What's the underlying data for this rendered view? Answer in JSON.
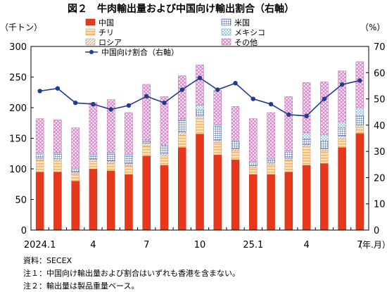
{
  "chart_data": {
    "type": "bar",
    "title": "図２　牛肉輸出量および中国向け輸出割合（右軸）",
    "y_left_unit": "（千トン）",
    "y_right_unit": "（%）",
    "x_unit": "（年.月）",
    "ylim_left": [
      0,
      300
    ],
    "ylim_right": [
      0,
      70
    ],
    "yticks_left": [
      "0",
      "50",
      "100",
      "150",
      "200",
      "250",
      "300"
    ],
    "yticks_right": [
      "0",
      "10",
      "20",
      "30",
      "40",
      "50",
      "60",
      "70"
    ],
    "x_tick_labels": [
      "2024.1",
      "4",
      "7",
      "10",
      "25.1",
      "4",
      "7"
    ],
    "x_tick_positions": [
      0,
      3,
      6,
      9,
      12,
      15,
      18
    ],
    "grid": false,
    "legend_position": "top-left",
    "categories": [
      "2024.1",
      "2024.2",
      "2024.3",
      "2024.4",
      "2024.5",
      "2024.6",
      "2024.7",
      "2024.8",
      "2024.9",
      "2024.10",
      "2024.11",
      "2024.12",
      "2025.1",
      "2025.2",
      "2025.3",
      "2025.4",
      "2025.5",
      "2025.6",
      "2025.7"
    ],
    "series": [
      {
        "name": "中国",
        "color": "#e8381b",
        "values": [
          95,
          95,
          80,
          100,
          97,
          91,
          121,
          106,
          135,
          157,
          123,
          115,
          91,
          91,
          95,
          106,
          109,
          135,
          158
        ]
      },
      {
        "name": "チリ",
        "color": "#f5c98e",
        "values": [
          19,
          18,
          12,
          12,
          12,
          14,
          16,
          15,
          20,
          25,
          20,
          14,
          11,
          15,
          19,
          30,
          20,
          14,
          10
        ]
      },
      {
        "name": "ロシア",
        "color": "#f3dcc8",
        "values": [
          4,
          4,
          3,
          4,
          4,
          4,
          5,
          4,
          5,
          5,
          4,
          4,
          3,
          4,
          4,
          4,
          4,
          5,
          4
        ]
      },
      {
        "name": "米国",
        "color": "#8fa4d8",
        "values": [
          6,
          8,
          4,
          6,
          12,
          13,
          4,
          12,
          20,
          9,
          23,
          12,
          5,
          5,
          9,
          9,
          13,
          13,
          15
        ]
      },
      {
        "name": "メキシコ",
        "color": "#cfe6f3",
        "values": [
          2,
          2,
          2,
          2,
          2,
          2,
          2,
          2,
          2,
          8,
          2,
          2,
          2,
          2,
          2,
          10,
          10,
          10,
          13
        ]
      },
      {
        "name": "その他",
        "color": "#f2b6e6",
        "values": [
          56,
          53,
          66,
          84,
          86,
          68,
          90,
          79,
          70,
          66,
          56,
          55,
          70,
          75,
          89,
          82,
          86,
          83,
          75
        ]
      }
    ],
    "line_series": {
      "name": "中国向け割合（右軸）",
      "axis": "right",
      "color": "#1f3d8c",
      "values": [
        53,
        54,
        48.5,
        48,
        46,
        47.5,
        51,
        48.5,
        53.5,
        58,
        53.5,
        56,
        50,
        48,
        44,
        43.5,
        50,
        55.5,
        57
      ]
    },
    "notes": [
      "資料：SECEX",
      "注１：中国向け輸出量および割合はいずれも香港を含まない。",
      "注２：輸出量は製品重量ベース。"
    ]
  }
}
